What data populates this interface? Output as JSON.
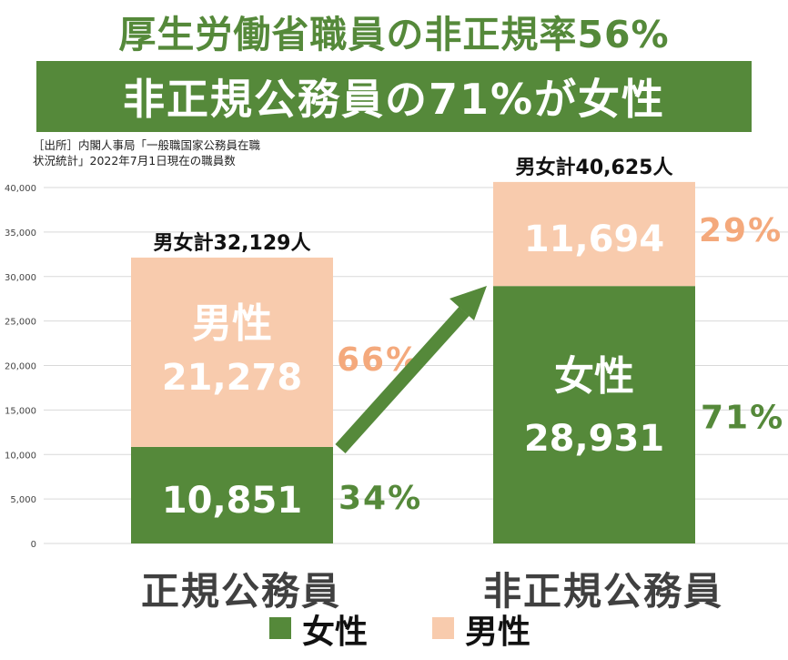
{
  "header": {
    "title": "厚生労働省職員の非正規率56%",
    "subtitle": "非正規公務員の71%が女性"
  },
  "source": {
    "line1": "［出所］内閣人事局「一般職国家公務員在職",
    "line2": "状況統計」2022年7月1日現在の職員数"
  },
  "chart_data": {
    "type": "bar",
    "stacked": true,
    "categories": [
      "正規公務員",
      "非正規公務員"
    ],
    "series": [
      {
        "name": "女性",
        "values": [
          10851,
          28931
        ],
        "labels": [
          "10,851",
          "28,931"
        ],
        "percent": [
          "34%",
          "71%"
        ],
        "color": "#55893a"
      },
      {
        "name": "男性",
        "values": [
          21278,
          11694
        ],
        "labels": [
          "21,278",
          "11,694"
        ],
        "percent": [
          "66%",
          "29%"
        ],
        "color": "#f8cbad"
      }
    ],
    "totals": [
      "男女計32,129人",
      "男女計40,625人"
    ],
    "segment_names": [
      [
        "",
        "男性"
      ],
      [
        "女性",
        ""
      ]
    ],
    "ylim": [
      0,
      40000
    ],
    "yticks": [
      "0",
      "5,000",
      "10,000",
      "15,000",
      "20,000",
      "25,000",
      "30,000",
      "35,000",
      "40,000"
    ],
    "legend_position": "bottom",
    "grid": true
  }
}
